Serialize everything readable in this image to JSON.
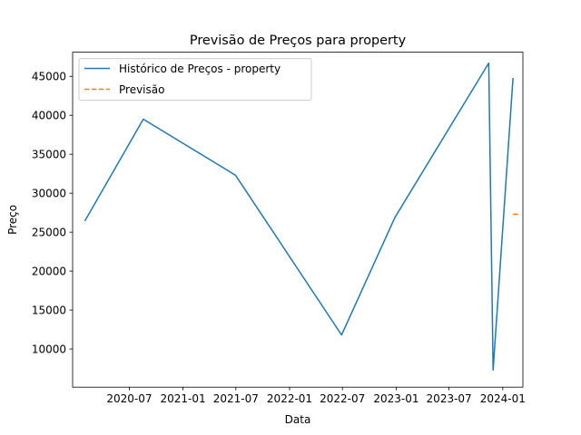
{
  "chart_data": {
    "type": "line",
    "title": "Previsão de Preços para property",
    "xlabel": "Data",
    "ylabel": "Preço",
    "xlim": [
      "2019-12-20",
      "2024-03-10"
    ],
    "ylim": [
      5100,
      48100
    ],
    "x_ticks": [
      {
        "date": "2020-07-01",
        "label": "2020-07"
      },
      {
        "date": "2021-01-01",
        "label": "2021-01"
      },
      {
        "date": "2021-07-01",
        "label": "2021-07"
      },
      {
        "date": "2022-01-01",
        "label": "2022-01"
      },
      {
        "date": "2022-07-01",
        "label": "2022-07"
      },
      {
        "date": "2023-01-01",
        "label": "2023-01"
      },
      {
        "date": "2023-07-01",
        "label": "2023-07"
      },
      {
        "date": "2024-01-01",
        "label": "2024-01"
      }
    ],
    "y_ticks": [
      10000,
      15000,
      20000,
      25000,
      30000,
      35000,
      40000,
      45000
    ],
    "series": [
      {
        "name": "Histórico de Preços - property",
        "color": "#1f77b4",
        "style": "solid",
        "points": [
          {
            "x": "2020-02-01",
            "y": 26500
          },
          {
            "x": "2020-08-18",
            "y": 39500
          },
          {
            "x": "2021-06-30",
            "y": 32300
          },
          {
            "x": "2022-06-28",
            "y": 11800
          },
          {
            "x": "2022-12-28",
            "y": 26900
          },
          {
            "x": "2023-11-14",
            "y": 46700
          },
          {
            "x": "2023-11-29",
            "y": 7300
          },
          {
            "x": "2024-02-05",
            "y": 44700
          }
        ]
      },
      {
        "name": "Previsão",
        "color": "#ff7f0e",
        "style": "dashed",
        "points": [
          {
            "x": "2024-02-05",
            "y": 27300
          },
          {
            "x": "2024-02-25",
            "y": 27300
          }
        ]
      }
    ],
    "legend": "upper left",
    "grid": false
  }
}
